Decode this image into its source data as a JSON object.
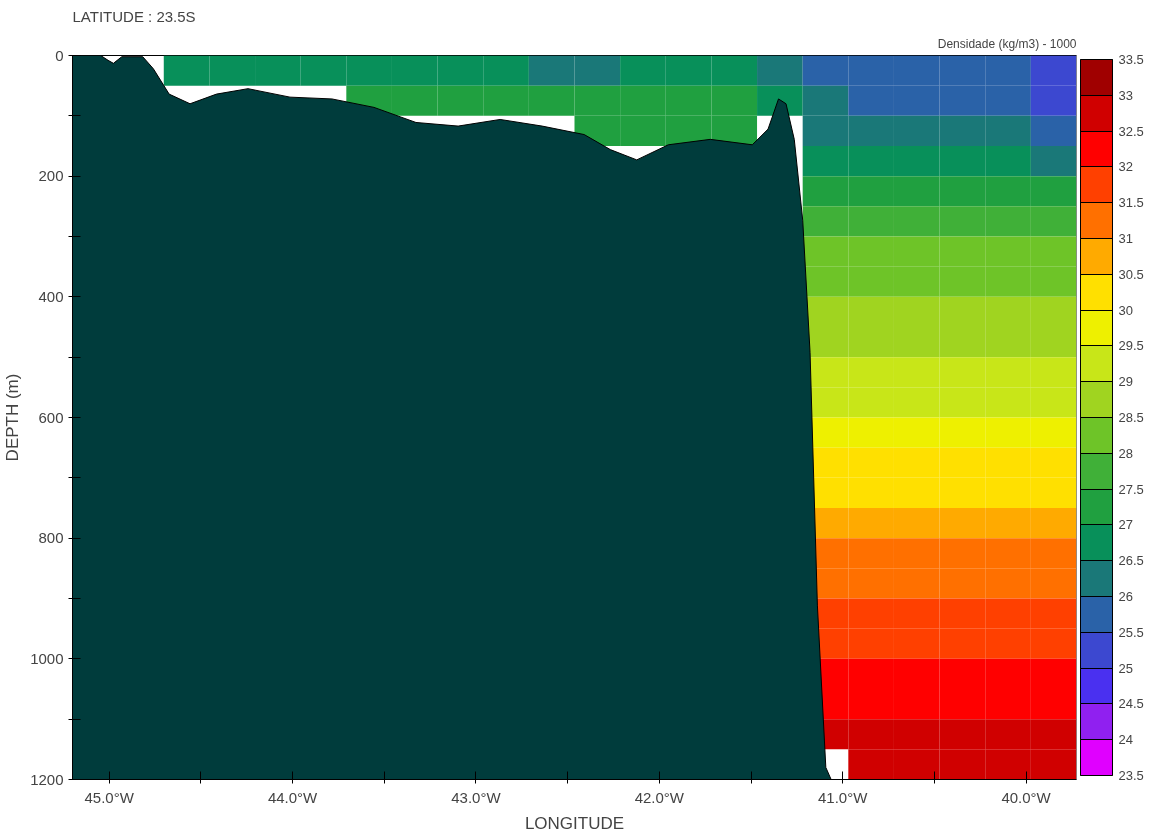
{
  "chart_data": {
    "type": "heatmap",
    "title": "LATITUDE : 23.5S",
    "xlabel": "LONGITUDE",
    "ylabel": "DEPTH (m)",
    "clabel": "Densidade (kg/m3) - 1000",
    "xlim": [
      -45.2,
      -39.725
    ],
    "ylim": [
      1200,
      0
    ],
    "xticks": [
      {
        "value": -45.0,
        "label": "45.0°W"
      },
      {
        "value": -44.5,
        "label": null
      },
      {
        "value": -44.0,
        "label": "44.0°W"
      },
      {
        "value": -43.5,
        "label": null
      },
      {
        "value": -43.0,
        "label": "43.0°W"
      },
      {
        "value": -42.5,
        "label": null
      },
      {
        "value": -42.0,
        "label": "42.0°W"
      },
      {
        "value": -41.5,
        "label": null
      },
      {
        "value": -41.0,
        "label": "41.0°W"
      },
      {
        "value": -40.5,
        "label": null
      },
      {
        "value": -40.0,
        "label": "40.0°W"
      }
    ],
    "yticks": [
      0,
      {
        "value": 100,
        "label": null
      },
      200,
      {
        "value": 300,
        "label": null
      },
      400,
      {
        "value": 500,
        "label": null
      },
      600,
      {
        "value": 700,
        "label": null
      },
      800,
      {
        "value": 900,
        "label": null
      },
      1000,
      {
        "value": 1100,
        "label": null
      },
      1200
    ],
    "clim": [
      23.5,
      33.5
    ],
    "cticks": [
      23.5,
      24,
      24.5,
      25,
      25.5,
      26,
      26.5,
      27,
      27.5,
      28,
      28.5,
      29,
      29.5,
      30,
      30.5,
      31,
      31.5,
      32,
      32.5,
      33,
      33.5
    ],
    "colors": [
      "#e000ff",
      "#9020f0",
      "#4a30f0",
      "#3c48d0",
      "#2a62a8",
      "#1a7878",
      "#08905a",
      "#20a040",
      "#40b038",
      "#6ec428",
      "#a0d420",
      "#c8e618",
      "#eef000",
      "#ffe000",
      "#ffaa00",
      "#ff7000",
      "#ff4000",
      "#ff0000",
      "#d00000",
      "#a00000"
    ],
    "grid": false,
    "cells": [
      [
        null,
        null,
        26.7,
        26.7,
        26.7,
        26.7,
        26.7,
        26.7,
        26.7,
        26.7,
        26.2,
        26.2,
        26.7,
        26.7,
        26.7,
        26.2,
        25.8,
        25.8,
        25.8,
        25.8,
        25.8,
        25.3
      ],
      [
        null,
        null,
        null,
        null,
        null,
        null,
        27.2,
        27.2,
        27.2,
        27.2,
        27.2,
        27.2,
        27.2,
        27.2,
        27.2,
        26.7,
        26.2,
        25.8,
        25.8,
        25.8,
        25.8,
        25.3
      ],
      [
        null,
        null,
        null,
        null,
        null,
        null,
        null,
        null,
        null,
        null,
        null,
        27.2,
        27.2,
        27.2,
        27.2,
        null,
        26.2,
        26.2,
        26.2,
        26.2,
        26.2,
        25.8
      ],
      [
        null,
        null,
        null,
        null,
        null,
        null,
        null,
        null,
        null,
        null,
        null,
        null,
        null,
        null,
        null,
        null,
        26.7,
        26.7,
        26.7,
        26.7,
        26.7,
        26.2
      ],
      [
        null,
        null,
        null,
        null,
        null,
        null,
        null,
        null,
        null,
        null,
        null,
        null,
        null,
        null,
        null,
        null,
        27.2,
        27.2,
        27.2,
        27.2,
        27.2,
        27.2
      ],
      [
        null,
        null,
        null,
        null,
        null,
        null,
        null,
        null,
        null,
        null,
        null,
        null,
        null,
        null,
        null,
        null,
        27.7,
        27.7,
        27.7,
        27.7,
        27.7,
        27.7
      ],
      [
        null,
        null,
        null,
        null,
        null,
        null,
        null,
        null,
        null,
        null,
        null,
        null,
        null,
        null,
        null,
        null,
        28.2,
        28.2,
        28.2,
        28.2,
        28.2,
        28.2
      ],
      [
        null,
        null,
        null,
        null,
        null,
        null,
        null,
        null,
        null,
        null,
        null,
        null,
        null,
        null,
        null,
        null,
        28.2,
        28.2,
        28.2,
        28.2,
        28.2,
        28.2
      ],
      [
        null,
        null,
        null,
        null,
        null,
        null,
        null,
        null,
        null,
        null,
        null,
        null,
        null,
        null,
        null,
        null,
        28.7,
        28.7,
        28.7,
        28.7,
        28.7,
        28.7
      ],
      [
        null,
        null,
        null,
        null,
        null,
        null,
        null,
        null,
        null,
        null,
        null,
        null,
        null,
        null,
        null,
        null,
        28.7,
        28.7,
        28.7,
        28.7,
        28.7,
        28.7
      ],
      [
        null,
        null,
        null,
        null,
        null,
        null,
        null,
        null,
        null,
        null,
        null,
        null,
        null,
        null,
        null,
        null,
        29.2,
        29.2,
        29.2,
        29.2,
        29.2,
        29.2
      ],
      [
        null,
        null,
        null,
        null,
        null,
        null,
        null,
        null,
        null,
        null,
        null,
        null,
        null,
        null,
        null,
        null,
        29.2,
        29.2,
        29.2,
        29.2,
        29.2,
        29.2
      ],
      [
        null,
        null,
        null,
        null,
        null,
        null,
        null,
        null,
        null,
        null,
        null,
        null,
        null,
        null,
        null,
        null,
        29.7,
        29.7,
        29.7,
        29.7,
        29.7,
        29.7
      ],
      [
        null,
        null,
        null,
        null,
        null,
        null,
        null,
        null,
        null,
        null,
        null,
        null,
        null,
        null,
        null,
        null,
        30.2,
        30.2,
        30.2,
        30.2,
        30.2,
        30.2
      ],
      [
        null,
        null,
        null,
        null,
        null,
        null,
        null,
        null,
        null,
        null,
        null,
        null,
        null,
        null,
        null,
        null,
        30.2,
        30.2,
        30.2,
        30.2,
        30.2,
        30.2
      ],
      [
        null,
        null,
        null,
        null,
        null,
        null,
        null,
        null,
        null,
        null,
        null,
        null,
        null,
        null,
        null,
        null,
        30.7,
        30.7,
        30.7,
        30.7,
        30.7,
        30.7
      ],
      [
        null,
        null,
        null,
        null,
        null,
        null,
        null,
        null,
        null,
        null,
        null,
        null,
        null,
        null,
        null,
        null,
        31.2,
        31.2,
        31.2,
        31.2,
        31.2,
        31.2
      ],
      [
        null,
        null,
        null,
        null,
        null,
        null,
        null,
        null,
        null,
        null,
        null,
        null,
        null,
        null,
        null,
        null,
        31.2,
        31.2,
        31.2,
        31.2,
        31.2,
        31.2
      ],
      [
        null,
        null,
        null,
        null,
        null,
        null,
        null,
        null,
        null,
        null,
        null,
        null,
        null,
        null,
        null,
        null,
        31.7,
        31.7,
        31.7,
        31.7,
        31.7,
        31.7
      ],
      [
        null,
        null,
        null,
        null,
        null,
        null,
        null,
        null,
        null,
        null,
        null,
        null,
        null,
        null,
        null,
        null,
        31.7,
        31.7,
        31.7,
        31.7,
        31.7,
        31.7
      ],
      [
        null,
        null,
        null,
        null,
        null,
        null,
        null,
        null,
        null,
        null,
        null,
        null,
        null,
        null,
        null,
        null,
        32.2,
        32.2,
        32.2,
        32.2,
        32.2,
        32.2
      ],
      [
        null,
        null,
        null,
        null,
        null,
        null,
        null,
        null,
        null,
        null,
        null,
        null,
        null,
        null,
        null,
        null,
        32.2,
        32.2,
        32.2,
        32.2,
        32.2,
        32.2
      ],
      [
        null,
        null,
        null,
        null,
        null,
        null,
        null,
        null,
        null,
        null,
        null,
        null,
        null,
        null,
        null,
        null,
        32.7,
        32.7,
        32.7,
        32.7,
        32.7,
        32.7
      ],
      [
        null,
        null,
        null,
        null,
        null,
        null,
        null,
        null,
        null,
        null,
        null,
        null,
        null,
        null,
        null,
        null,
        null,
        32.7,
        32.7,
        32.7,
        32.7,
        32.7
      ]
    ],
    "series": [
      {
        "type": "area",
        "color": "#003c3c",
        "x": [
          -45.2,
          -45.2,
          -45.046,
          -45.006,
          -44.977,
          -44.931,
          -44.817,
          -44.759,
          -44.673,
          -44.559,
          -44.415,
          -44.243,
          -44.014,
          -43.785,
          -43.556,
          -43.327,
          -43.097,
          -42.868,
          -42.639,
          -42.41,
          -42.267,
          -42.123,
          -41.951,
          -41.722,
          -41.493,
          -41.407,
          -41.35,
          -41.309,
          -41.264,
          -41.218,
          -41.178,
          -41.138,
          -41.092,
          -41.063
        ],
        "values": [
          1200,
          0,
          0,
          8,
          13,
          2,
          2,
          22,
          64,
          80,
          64,
          55,
          69,
          72,
          86,
          111,
          117,
          106,
          117,
          131,
          156,
          173,
          148,
          139,
          148,
          122,
          72,
          80,
          139,
          273,
          492,
          911,
          1180,
          1200
        ]
      }
    ]
  }
}
